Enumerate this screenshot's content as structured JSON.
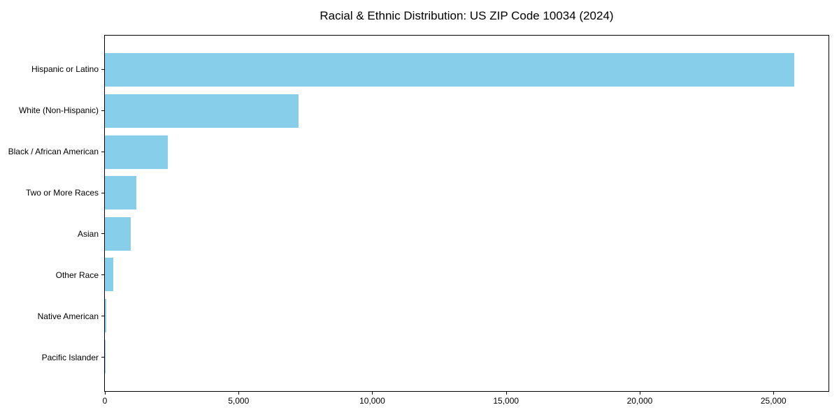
{
  "title": "Racial & Ethnic Distribution: US ZIP Code 10034 (2024)",
  "colors": {
    "bar": "#87CEEB",
    "axis": "#000000",
    "background": "#FFFFFF",
    "text": "#000000"
  },
  "chart_data": {
    "type": "bar",
    "orientation": "horizontal",
    "title": "Racial & Ethnic Distribution: US ZIP Code 10034 (2024)",
    "xlabel": "",
    "ylabel": "",
    "categories": [
      "Hispanic or Latino",
      "White (Non-Hispanic)",
      "Black / African American",
      "Two or More Races",
      "Asian",
      "Other Race",
      "Native American",
      "Pacific Islander"
    ],
    "values": [
      25780,
      7250,
      2350,
      1170,
      970,
      310,
      40,
      10
    ],
    "xlim": [
      0,
      27060
    ],
    "x_ticks": [
      0,
      5000,
      10000,
      15000,
      20000,
      25000
    ],
    "x_tick_labels": [
      "0",
      "5,000",
      "10,000",
      "15,000",
      "20,000",
      "25,000"
    ],
    "bar_color": "#87CEEB",
    "grid": false,
    "legend": false
  }
}
